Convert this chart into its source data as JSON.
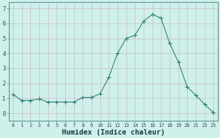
{
  "x": [
    0,
    1,
    2,
    3,
    4,
    5,
    6,
    7,
    8,
    9,
    10,
    11,
    12,
    13,
    14,
    15,
    16,
    17,
    18,
    19,
    20,
    21,
    22,
    23
  ],
  "y": [
    1.25,
    0.85,
    0.85,
    0.95,
    0.75,
    0.75,
    0.75,
    0.75,
    1.05,
    1.05,
    1.3,
    2.4,
    4.0,
    5.0,
    5.2,
    6.15,
    6.6,
    6.35,
    4.65,
    3.4,
    1.75,
    1.2,
    0.6,
    0.05
  ],
  "line_color": "#2e7d6e",
  "marker": "+",
  "marker_size": 4,
  "bg_color": "#cff0eb",
  "grid_color": "#b8ddd8",
  "xlabel": "Humidex (Indice chaleur)",
  "xlabel_fontsize": 7.5,
  "xlim": [
    -0.5,
    23.5
  ],
  "ylim": [
    -0.5,
    7.4
  ],
  "yticks": [
    0,
    1,
    2,
    3,
    4,
    5,
    6,
    7
  ],
  "xtick_labels": [
    "0",
    "1",
    "2",
    "3",
    "4",
    "5",
    "6",
    "7",
    "8",
    "9",
    "10",
    "11",
    "12",
    "13",
    "14",
    "15",
    "16",
    "17",
    "18",
    "19",
    "20",
    "21",
    "22",
    "23"
  ]
}
